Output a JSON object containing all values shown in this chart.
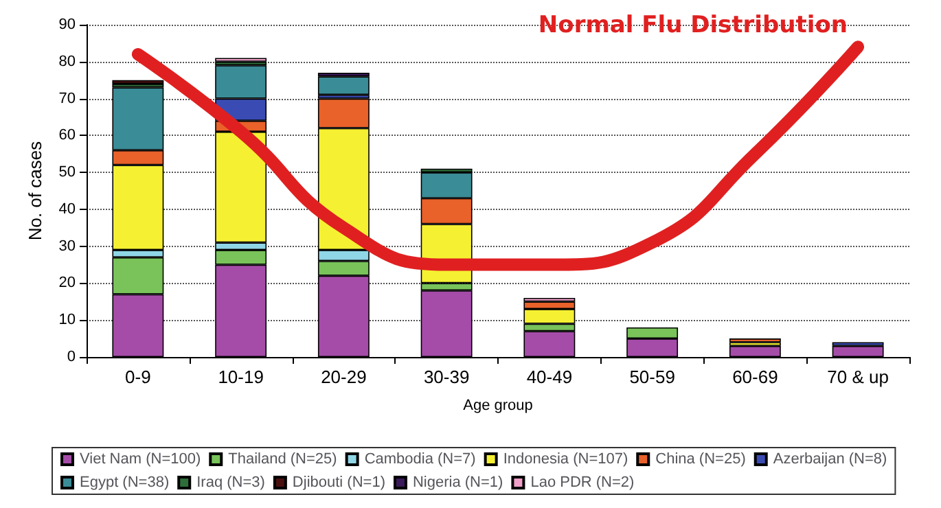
{
  "chart_data": {
    "type": "bar",
    "stacked": true,
    "xlabel": "Age group",
    "ylabel": "No. of cases",
    "categories": [
      "0-9",
      "10-19",
      "20-29",
      "30-39",
      "40-49",
      "50-59",
      "60-69",
      "70 & up"
    ],
    "ylim": [
      0,
      90
    ],
    "yticks": [
      0,
      10,
      20,
      30,
      40,
      50,
      60,
      70,
      80,
      90
    ],
    "grid": "y",
    "legend": "bottom",
    "series": [
      {
        "name": "Viet Nam (N=100)",
        "color": "#a54ca8",
        "values": [
          17,
          25,
          22,
          18,
          7,
          5,
          3,
          3
        ]
      },
      {
        "name": "Thailand (N=25)",
        "color": "#79c35a",
        "values": [
          10,
          4,
          4,
          2,
          2,
          3,
          null,
          null
        ]
      },
      {
        "name": "Cambodia (N=7)",
        "color": "#8fd6e6",
        "values": [
          2,
          2,
          3,
          null,
          null,
          null,
          null,
          null
        ]
      },
      {
        "name": "Indonesia (N=107)",
        "color": "#f5f032",
        "values": [
          23,
          30,
          33,
          16,
          4,
          null,
          1,
          null
        ]
      },
      {
        "name": "China (N=25)",
        "color": "#e8622a",
        "values": [
          4,
          3,
          8,
          7,
          2,
          null,
          1,
          null
        ]
      },
      {
        "name": "Azerbaijan (N=8)",
        "color": "#3a4cb4",
        "values": [
          null,
          6,
          1,
          null,
          null,
          null,
          null,
          1
        ]
      },
      {
        "name": "Egypt (N=38)",
        "color": "#3a8c96",
        "values": [
          17,
          9,
          5,
          7,
          null,
          null,
          null,
          null
        ]
      },
      {
        "name": "Iraq (N=3)",
        "color": "#2e6e3a",
        "values": [
          1,
          1,
          null,
          1,
          null,
          null,
          null,
          null
        ]
      },
      {
        "name": "Djibouti (N=1)",
        "color": "#4a1010",
        "values": [
          1,
          null,
          null,
          null,
          null,
          null,
          null,
          null
        ]
      },
      {
        "name": "Nigeria (N=1)",
        "color": "#3a1a5a",
        "values": [
          null,
          null,
          1,
          null,
          null,
          null,
          null,
          null
        ]
      },
      {
        "name": "Lao PDR (N=2)",
        "color": "#f0a0c8",
        "values": [
          null,
          1,
          null,
          null,
          1,
          null,
          null,
          null
        ]
      },
      {
        "name": "Normal Flu Distribution",
        "type": "line",
        "color": "#e02020",
        "line_style": "solid",
        "values": [
          82,
          61,
          35,
          25,
          25,
          31,
          55,
          84
        ]
      }
    ]
  }
}
